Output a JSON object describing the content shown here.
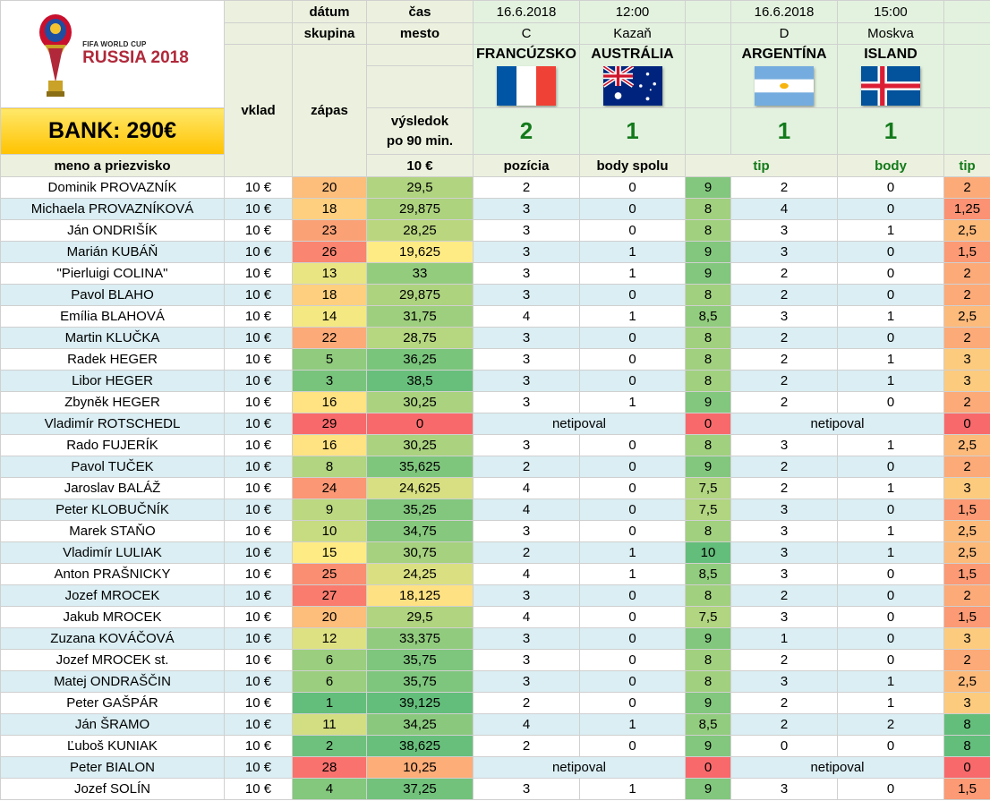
{
  "logo": {
    "small_text": "FIFA WORLD CUP",
    "big_text": "RUSSIA 2018"
  },
  "bank": "BANK: 290€",
  "header": {
    "datum": "dátum",
    "cas": "čas",
    "skupina": "skupina",
    "mesto": "mesto",
    "vklad": "vklad",
    "zapas": "zápas",
    "vysledok_1": "výsledok",
    "vysledok_2": "po 90 min.",
    "meno": "meno a priezvisko",
    "vklad_val": "10 €",
    "pozicia": "pozícia",
    "body_spolu": "body spolu",
    "tip": "tip",
    "body": "body"
  },
  "matches": [
    {
      "date": "16.6.2018",
      "time": "12:00",
      "group": "C",
      "city": "Kazaň",
      "home": "FRANCÚZSKO",
      "away": "AUSTRÁLIA",
      "home_score": "2",
      "away_score": "1",
      "home_flag": "france-flag",
      "away_flag": "australia-flag"
    },
    {
      "date": "16.6.2018",
      "time": "15:00",
      "group": "D",
      "city": "Moskva",
      "home": "ARGENTÍNA",
      "away": "ISLAND",
      "home_score": "1",
      "away_score": "1",
      "home_flag": "argentina-flag",
      "away_flag": "iceland-flag"
    }
  ],
  "rows": [
    {
      "name": "Dominik PROVAZNÍK",
      "vklad": "10 €",
      "poz": "20",
      "spolu": "29,5",
      "t1a": "2",
      "t1b": "0",
      "b1": "9",
      "t2a": "2",
      "t2b": "0",
      "b2": "2"
    },
    {
      "name": "Michaela PROVAZNÍKOVÁ",
      "vklad": "10 €",
      "poz": "18",
      "spolu": "29,875",
      "t1a": "3",
      "t1b": "0",
      "b1": "8",
      "t2a": "4",
      "t2b": "0",
      "b2": "1,25"
    },
    {
      "name": "Ján ONDRIŠÍK",
      "vklad": "10 €",
      "poz": "23",
      "spolu": "28,25",
      "t1a": "3",
      "t1b": "0",
      "b1": "8",
      "t2a": "3",
      "t2b": "1",
      "b2": "2,5"
    },
    {
      "name": "Marián KUBÁŇ",
      "vklad": "10 €",
      "poz": "26",
      "spolu": "19,625",
      "t1a": "3",
      "t1b": "1",
      "b1": "9",
      "t2a": "3",
      "t2b": "0",
      "b2": "1,5"
    },
    {
      "name": "\"Pierluigi COLINA\"",
      "vklad": "10 €",
      "poz": "13",
      "spolu": "33",
      "t1a": "3",
      "t1b": "1",
      "b1": "9",
      "t2a": "2",
      "t2b": "0",
      "b2": "2"
    },
    {
      "name": "Pavol BLAHO",
      "vklad": "10 €",
      "poz": "18",
      "spolu": "29,875",
      "t1a": "3",
      "t1b": "0",
      "b1": "8",
      "t2a": "2",
      "t2b": "0",
      "b2": "2"
    },
    {
      "name": "Emília BLAHOVÁ",
      "vklad": "10 €",
      "poz": "14",
      "spolu": "31,75",
      "t1a": "4",
      "t1b": "1",
      "b1": "8,5",
      "t2a": "3",
      "t2b": "1",
      "b2": "2,5"
    },
    {
      "name": "Martin KLUČKA",
      "vklad": "10 €",
      "poz": "22",
      "spolu": "28,75",
      "t1a": "3",
      "t1b": "0",
      "b1": "8",
      "t2a": "2",
      "t2b": "0",
      "b2": "2"
    },
    {
      "name": "Radek HEGER",
      "vklad": "10 €",
      "poz": "5",
      "spolu": "36,25",
      "t1a": "3",
      "t1b": "0",
      "b1": "8",
      "t2a": "2",
      "t2b": "1",
      "b2": "3"
    },
    {
      "name": "Libor HEGER",
      "vklad": "10 €",
      "poz": "3",
      "spolu": "38,5",
      "t1a": "3",
      "t1b": "0",
      "b1": "8",
      "t2a": "2",
      "t2b": "1",
      "b2": "3"
    },
    {
      "name": "Zbyněk HEGER",
      "vklad": "10 €",
      "poz": "16",
      "spolu": "30,25",
      "t1a": "3",
      "t1b": "1",
      "b1": "9",
      "t2a": "2",
      "t2b": "0",
      "b2": "2"
    },
    {
      "name": "Vladimír ROTSCHEDL",
      "vklad": "10 €",
      "poz": "29",
      "spolu": "0",
      "np1": "netipoval",
      "b1": "0",
      "np2": "netipoval",
      "b2": "0"
    },
    {
      "name": "Rado FUJERÍK",
      "vklad": "10 €",
      "poz": "16",
      "spolu": "30,25",
      "t1a": "3",
      "t1b": "0",
      "b1": "8",
      "t2a": "3",
      "t2b": "1",
      "b2": "2,5"
    },
    {
      "name": "Pavol TUČEK",
      "vklad": "10 €",
      "poz": "8",
      "spolu": "35,625",
      "t1a": "2",
      "t1b": "0",
      "b1": "9",
      "t2a": "2",
      "t2b": "0",
      "b2": "2"
    },
    {
      "name": "Jaroslav BALÁŽ",
      "vklad": "10 €",
      "poz": "24",
      "spolu": "24,625",
      "t1a": "4",
      "t1b": "0",
      "b1": "7,5",
      "t2a": "2",
      "t2b": "1",
      "b2": "3"
    },
    {
      "name": "Peter KLOBUČNÍK",
      "vklad": "10 €",
      "poz": "9",
      "spolu": "35,25",
      "t1a": "4",
      "t1b": "0",
      "b1": "7,5",
      "t2a": "3",
      "t2b": "0",
      "b2": "1,5"
    },
    {
      "name": "Marek STAŇO",
      "vklad": "10 €",
      "poz": "10",
      "spolu": "34,75",
      "t1a": "3",
      "t1b": "0",
      "b1": "8",
      "t2a": "3",
      "t2b": "1",
      "b2": "2,5"
    },
    {
      "name": "Vladimír LULIAK",
      "vklad": "10 €",
      "poz": "15",
      "spolu": "30,75",
      "t1a": "2",
      "t1b": "1",
      "b1": "10",
      "t2a": "3",
      "t2b": "1",
      "b2": "2,5"
    },
    {
      "name": "Anton PRAŠNICKY",
      "vklad": "10 €",
      "poz": "25",
      "spolu": "24,25",
      "t1a": "4",
      "t1b": "1",
      "b1": "8,5",
      "t2a": "3",
      "t2b": "0",
      "b2": "1,5"
    },
    {
      "name": "Jozef MROCEK",
      "vklad": "10 €",
      "poz": "27",
      "spolu": "18,125",
      "t1a": "3",
      "t1b": "0",
      "b1": "8",
      "t2a": "2",
      "t2b": "0",
      "b2": "2"
    },
    {
      "name": "Jakub MROCEK",
      "vklad": "10 €",
      "poz": "20",
      "spolu": "29,5",
      "t1a": "4",
      "t1b": "0",
      "b1": "7,5",
      "t2a": "3",
      "t2b": "0",
      "b2": "1,5"
    },
    {
      "name": "Zuzana KOVÁČOVÁ",
      "vklad": "10 €",
      "poz": "12",
      "spolu": "33,375",
      "t1a": "3",
      "t1b": "0",
      "b1": "9",
      "t2a": "1",
      "t2b": "0",
      "b2": "3"
    },
    {
      "name": "Jozef MROCEK st.",
      "vklad": "10 €",
      "poz": "6",
      "spolu": "35,75",
      "t1a": "3",
      "t1b": "0",
      "b1": "8",
      "t2a": "2",
      "t2b": "0",
      "b2": "2"
    },
    {
      "name": "Matej ONDRAŠČIN",
      "vklad": "10 €",
      "poz": "6",
      "spolu": "35,75",
      "t1a": "3",
      "t1b": "0",
      "b1": "8",
      "t2a": "3",
      "t2b": "1",
      "b2": "2,5"
    },
    {
      "name": "Peter GAŠPÁR",
      "vklad": "10 €",
      "poz": "1",
      "spolu": "39,125",
      "t1a": "2",
      "t1b": "0",
      "b1": "9",
      "t2a": "2",
      "t2b": "1",
      "b2": "3"
    },
    {
      "name": "Ján ŠRAMO",
      "vklad": "10 €",
      "poz": "11",
      "spolu": "34,25",
      "t1a": "4",
      "t1b": "1",
      "b1": "8,5",
      "t2a": "2",
      "t2b": "2",
      "b2": "8"
    },
    {
      "name": "Ľuboš KUNIAK",
      "vklad": "10 €",
      "poz": "2",
      "spolu": "38,625",
      "t1a": "2",
      "t1b": "0",
      "b1": "9",
      "t2a": "0",
      "t2b": "0",
      "b2": "8"
    },
    {
      "name": "Peter BIALON",
      "vklad": "10 €",
      "poz": "28",
      "spolu": "10,25",
      "np1": "netipoval",
      "b1": "0",
      "np2": "netipoval",
      "b2": "0"
    },
    {
      "name": "Jozef SOLÍN",
      "vklad": "10 €",
      "poz": "4",
      "spolu": "37,25",
      "t1a": "3",
      "t1b": "1",
      "b1": "9",
      "t2a": "3",
      "t2b": "0",
      "b2": "1,5"
    }
  ]
}
